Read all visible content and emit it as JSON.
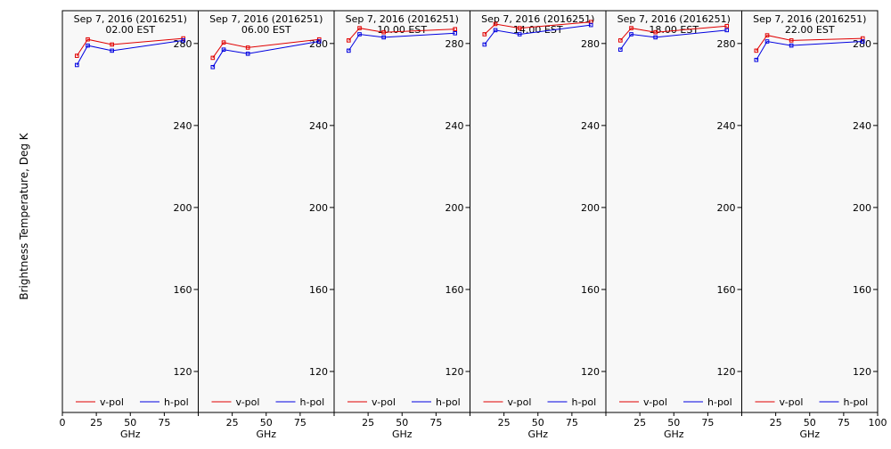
{
  "ylabel": "Brightness Temperature, Deg K",
  "colors": {
    "v_pol": "#e00000",
    "h_pol": "#0000e0",
    "plot_bg": "#f8f8f8",
    "grid": "#000000"
  },
  "chart_data": [
    {
      "type": "line",
      "title_line1": "Sep  7, 2016 (2016251)",
      "title_line2": "02.00 EST",
      "xlabel": "GHz",
      "xlim": [
        0,
        100
      ],
      "ylim": [
        100,
        296
      ],
      "xticks": [
        0,
        25,
        50,
        75,
        100
      ],
      "yticks": [
        120,
        160,
        200,
        240,
        280
      ],
      "legend": "bottom",
      "series": [
        {
          "name": "v-pol",
          "color": "#e00000",
          "x": [
            10.7,
            18.7,
            36.5,
            89.0
          ],
          "y": [
            274,
            282,
            279.5,
            282.5
          ]
        },
        {
          "name": "h-pol",
          "color": "#0000e0",
          "x": [
            10.7,
            18.7,
            36.5,
            89.0
          ],
          "y": [
            269.5,
            279,
            276.5,
            281.5
          ]
        }
      ]
    },
    {
      "type": "line",
      "title_line1": "Sep  7, 2016 (2016251)",
      "title_line2": "06.00 EST",
      "xlabel": "GHz",
      "xlim": [
        0,
        100
      ],
      "ylim": [
        100,
        296
      ],
      "xticks": [
        0,
        25,
        50,
        75,
        100
      ],
      "yticks": [
        120,
        160,
        200,
        240,
        280
      ],
      "legend": "bottom",
      "series": [
        {
          "name": "v-pol",
          "color": "#e00000",
          "x": [
            10.7,
            18.7,
            36.5,
            89.0
          ],
          "y": [
            273,
            280.5,
            278,
            282
          ]
        },
        {
          "name": "h-pol",
          "color": "#0000e0",
          "x": [
            10.7,
            18.7,
            36.5,
            89.0
          ],
          "y": [
            268.5,
            277,
            275,
            281
          ]
        }
      ]
    },
    {
      "type": "line",
      "title_line1": "Sep  7, 2016 (2016251)",
      "title_line2": "10.00 EST",
      "xlabel": "GHz",
      "xlim": [
        0,
        100
      ],
      "ylim": [
        100,
        296
      ],
      "xticks": [
        0,
        25,
        50,
        75,
        100
      ],
      "yticks": [
        120,
        160,
        200,
        240,
        280
      ],
      "legend": "bottom",
      "series": [
        {
          "name": "v-pol",
          "color": "#e00000",
          "x": [
            10.7,
            18.7,
            36.5,
            89.0
          ],
          "y": [
            281.5,
            287.5,
            285.5,
            287
          ]
        },
        {
          "name": "h-pol",
          "color": "#0000e0",
          "x": [
            10.7,
            18.7,
            36.5,
            89.0
          ],
          "y": [
            276.5,
            284.5,
            283,
            285
          ]
        }
      ]
    },
    {
      "type": "line",
      "title_line1": "Sep  7, 2016 (2016251)",
      "title_line2": "14.00 EST",
      "xlabel": "GHz",
      "xlim": [
        0,
        100
      ],
      "ylim": [
        100,
        296
      ],
      "xticks": [
        0,
        25,
        50,
        75,
        100
      ],
      "yticks": [
        120,
        160,
        200,
        240,
        280
      ],
      "legend": "bottom",
      "series": [
        {
          "name": "v-pol",
          "color": "#e00000",
          "x": [
            10.7,
            18.7,
            36.5,
            89.0
          ],
          "y": [
            284.5,
            289.5,
            287.5,
            290.5
          ]
        },
        {
          "name": "h-pol",
          "color": "#0000e0",
          "x": [
            10.7,
            18.7,
            36.5,
            89.0
          ],
          "y": [
            279.5,
            286.5,
            284.5,
            289
          ]
        }
      ]
    },
    {
      "type": "line",
      "title_line1": "Sep  7, 2016 (2016251)",
      "title_line2": "18.00 EST",
      "xlabel": "GHz",
      "xlim": [
        0,
        100
      ],
      "ylim": [
        100,
        296
      ],
      "xticks": [
        0,
        25,
        50,
        75,
        100
      ],
      "yticks": [
        120,
        160,
        200,
        240,
        280
      ],
      "legend": "bottom",
      "series": [
        {
          "name": "v-pol",
          "color": "#e00000",
          "x": [
            10.7,
            18.7,
            36.5,
            89.0
          ],
          "y": [
            281.5,
            287.5,
            285.5,
            288.5
          ]
        },
        {
          "name": "h-pol",
          "color": "#0000e0",
          "x": [
            10.7,
            18.7,
            36.5,
            89.0
          ],
          "y": [
            277,
            284.5,
            283,
            286.5
          ]
        }
      ]
    },
    {
      "type": "line",
      "title_line1": "Sep  7, 2016 (2016251)",
      "title_line2": "22.00 EST",
      "xlabel": "GHz",
      "xlim": [
        0,
        100
      ],
      "ylim": [
        100,
        296
      ],
      "xticks": [
        0,
        25,
        50,
        75,
        100
      ],
      "yticks": [
        120,
        160,
        200,
        240,
        280
      ],
      "legend": "bottom",
      "series": [
        {
          "name": "v-pol",
          "color": "#e00000",
          "x": [
            10.7,
            18.7,
            36.5,
            89.0
          ],
          "y": [
            276.5,
            284,
            281.5,
            282.5
          ]
        },
        {
          "name": "h-pol",
          "color": "#0000e0",
          "x": [
            10.7,
            18.7,
            36.5,
            89.0
          ],
          "y": [
            272,
            281,
            279,
            281
          ]
        }
      ]
    }
  ]
}
